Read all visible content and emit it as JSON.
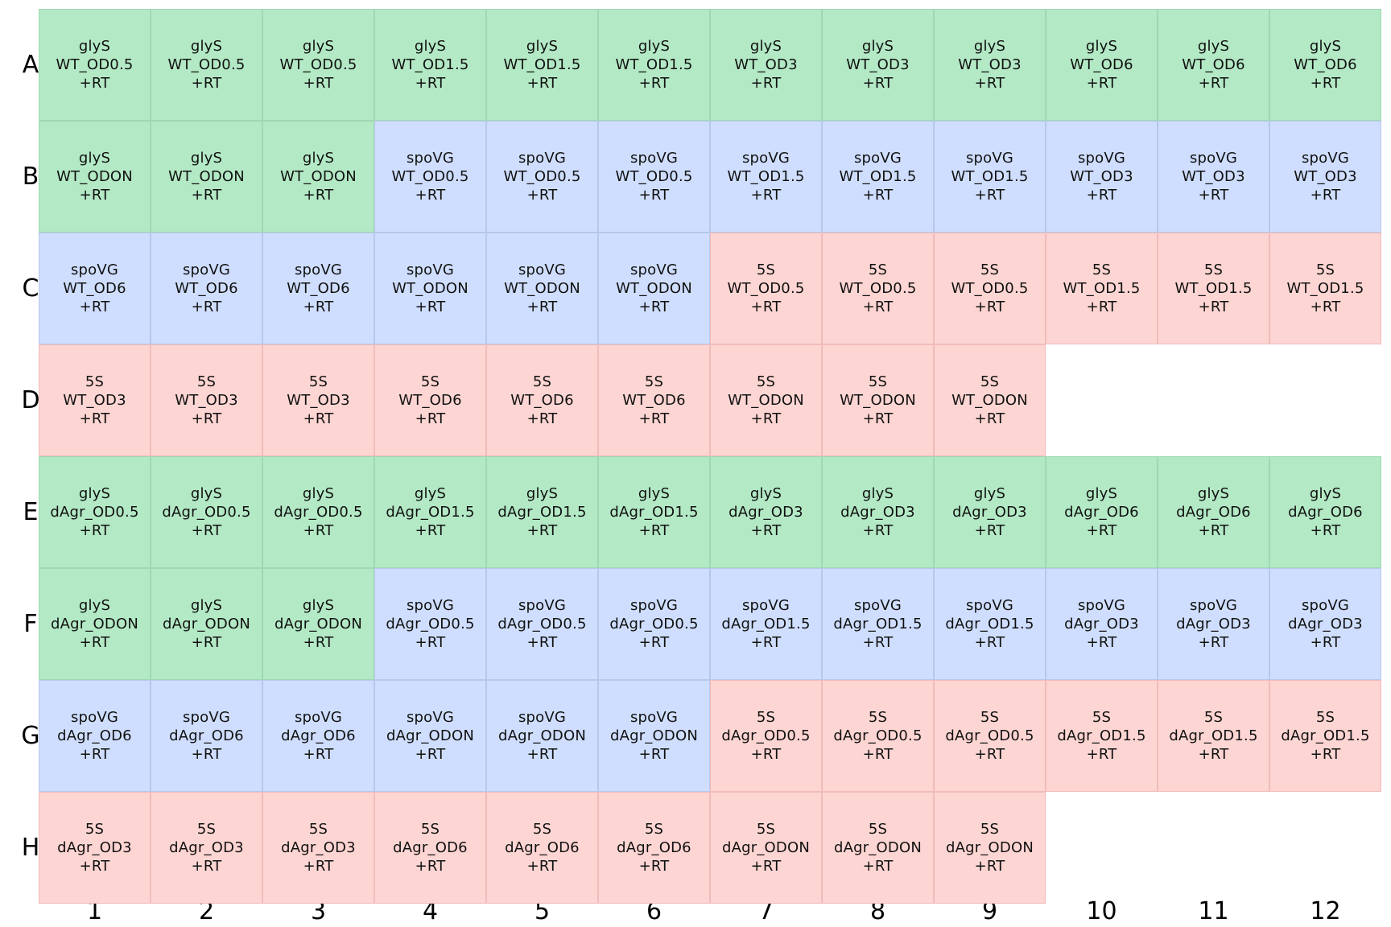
{
  "colors": {
    "glyS": "#b3e9c5",
    "spoVG": "#cfdeff",
    "5S": "#fdd5d3",
    "border_glyS": "#9fd8b2",
    "border_spoVG": "#b6c8ea",
    "border_5S": "#f0bcbb"
  },
  "row_labels": [
    "A",
    "B",
    "C",
    "D",
    "E",
    "F",
    "G",
    "H"
  ],
  "col_labels": [
    "1",
    "2",
    "3",
    "4",
    "5",
    "6",
    "7",
    "8",
    "9",
    "10",
    "11",
    "12"
  ],
  "wells": [
    {
      "gene": "glyS",
      "sample": "WT_OD0.5",
      "rt": "+RT"
    },
    {
      "gene": "glyS",
      "sample": "WT_OD0.5",
      "rt": "+RT"
    },
    {
      "gene": "glyS",
      "sample": "WT_OD0.5",
      "rt": "+RT"
    },
    {
      "gene": "glyS",
      "sample": "WT_OD1.5",
      "rt": "+RT"
    },
    {
      "gene": "glyS",
      "sample": "WT_OD1.5",
      "rt": "+RT"
    },
    {
      "gene": "glyS",
      "sample": "WT_OD1.5",
      "rt": "+RT"
    },
    {
      "gene": "glyS",
      "sample": "WT_OD3",
      "rt": "+RT"
    },
    {
      "gene": "glyS",
      "sample": "WT_OD3",
      "rt": "+RT"
    },
    {
      "gene": "glyS",
      "sample": "WT_OD3",
      "rt": "+RT"
    },
    {
      "gene": "glyS",
      "sample": "WT_OD6",
      "rt": "+RT"
    },
    {
      "gene": "glyS",
      "sample": "WT_OD6",
      "rt": "+RT"
    },
    {
      "gene": "glyS",
      "sample": "WT_OD6",
      "rt": "+RT"
    },
    {
      "gene": "glyS",
      "sample": "WT_ODON",
      "rt": "+RT"
    },
    {
      "gene": "glyS",
      "sample": "WT_ODON",
      "rt": "+RT"
    },
    {
      "gene": "glyS",
      "sample": "WT_ODON",
      "rt": "+RT"
    },
    {
      "gene": "spoVG",
      "sample": "WT_OD0.5",
      "rt": "+RT"
    },
    {
      "gene": "spoVG",
      "sample": "WT_OD0.5",
      "rt": "+RT"
    },
    {
      "gene": "spoVG",
      "sample": "WT_OD0.5",
      "rt": "+RT"
    },
    {
      "gene": "spoVG",
      "sample": "WT_OD1.5",
      "rt": "+RT"
    },
    {
      "gene": "spoVG",
      "sample": "WT_OD1.5",
      "rt": "+RT"
    },
    {
      "gene": "spoVG",
      "sample": "WT_OD1.5",
      "rt": "+RT"
    },
    {
      "gene": "spoVG",
      "sample": "WT_OD3",
      "rt": "+RT"
    },
    {
      "gene": "spoVG",
      "sample": "WT_OD3",
      "rt": "+RT"
    },
    {
      "gene": "spoVG",
      "sample": "WT_OD3",
      "rt": "+RT"
    },
    {
      "gene": "spoVG",
      "sample": "WT_OD6",
      "rt": "+RT"
    },
    {
      "gene": "spoVG",
      "sample": "WT_OD6",
      "rt": "+RT"
    },
    {
      "gene": "spoVG",
      "sample": "WT_OD6",
      "rt": "+RT"
    },
    {
      "gene": "spoVG",
      "sample": "WT_ODON",
      "rt": "+RT"
    },
    {
      "gene": "spoVG",
      "sample": "WT_ODON",
      "rt": "+RT"
    },
    {
      "gene": "spoVG",
      "sample": "WT_ODON",
      "rt": "+RT"
    },
    {
      "gene": "5S",
      "sample": "WT_OD0.5",
      "rt": "+RT"
    },
    {
      "gene": "5S",
      "sample": "WT_OD0.5",
      "rt": "+RT"
    },
    {
      "gene": "5S",
      "sample": "WT_OD0.5",
      "rt": "+RT"
    },
    {
      "gene": "5S",
      "sample": "WT_OD1.5",
      "rt": "+RT"
    },
    {
      "gene": "5S",
      "sample": "WT_OD1.5",
      "rt": "+RT"
    },
    {
      "gene": "5S",
      "sample": "WT_OD1.5",
      "rt": "+RT"
    },
    {
      "gene": "5S",
      "sample": "WT_OD3",
      "rt": "+RT"
    },
    {
      "gene": "5S",
      "sample": "WT_OD3",
      "rt": "+RT"
    },
    {
      "gene": "5S",
      "sample": "WT_OD3",
      "rt": "+RT"
    },
    {
      "gene": "5S",
      "sample": "WT_OD6",
      "rt": "+RT"
    },
    {
      "gene": "5S",
      "sample": "WT_OD6",
      "rt": "+RT"
    },
    {
      "gene": "5S",
      "sample": "WT_OD6",
      "rt": "+RT"
    },
    {
      "gene": "5S",
      "sample": "WT_ODON",
      "rt": "+RT"
    },
    {
      "gene": "5S",
      "sample": "WT_ODON",
      "rt": "+RT"
    },
    {
      "gene": "5S",
      "sample": "WT_ODON",
      "rt": "+RT"
    },
    null,
    null,
    null,
    {
      "gene": "glyS",
      "sample": "dAgr_OD0.5",
      "rt": "+RT"
    },
    {
      "gene": "glyS",
      "sample": "dAgr_OD0.5",
      "rt": "+RT"
    },
    {
      "gene": "glyS",
      "sample": "dAgr_OD0.5",
      "rt": "+RT"
    },
    {
      "gene": "glyS",
      "sample": "dAgr_OD1.5",
      "rt": "+RT"
    },
    {
      "gene": "glyS",
      "sample": "dAgr_OD1.5",
      "rt": "+RT"
    },
    {
      "gene": "glyS",
      "sample": "dAgr_OD1.5",
      "rt": "+RT"
    },
    {
      "gene": "glyS",
      "sample": "dAgr_OD3",
      "rt": "+RT"
    },
    {
      "gene": "glyS",
      "sample": "dAgr_OD3",
      "rt": "+RT"
    },
    {
      "gene": "glyS",
      "sample": "dAgr_OD3",
      "rt": "+RT"
    },
    {
      "gene": "glyS",
      "sample": "dAgr_OD6",
      "rt": "+RT"
    },
    {
      "gene": "glyS",
      "sample": "dAgr_OD6",
      "rt": "+RT"
    },
    {
      "gene": "glyS",
      "sample": "dAgr_OD6",
      "rt": "+RT"
    },
    {
      "gene": "glyS",
      "sample": "dAgr_ODON",
      "rt": "+RT"
    },
    {
      "gene": "glyS",
      "sample": "dAgr_ODON",
      "rt": "+RT"
    },
    {
      "gene": "glyS",
      "sample": "dAgr_ODON",
      "rt": "+RT"
    },
    {
      "gene": "spoVG",
      "sample": "dAgr_OD0.5",
      "rt": "+RT"
    },
    {
      "gene": "spoVG",
      "sample": "dAgr_OD0.5",
      "rt": "+RT"
    },
    {
      "gene": "spoVG",
      "sample": "dAgr_OD0.5",
      "rt": "+RT"
    },
    {
      "gene": "spoVG",
      "sample": "dAgr_OD1.5",
      "rt": "+RT"
    },
    {
      "gene": "spoVG",
      "sample": "dAgr_OD1.5",
      "rt": "+RT"
    },
    {
      "gene": "spoVG",
      "sample": "dAgr_OD1.5",
      "rt": "+RT"
    },
    {
      "gene": "spoVG",
      "sample": "dAgr_OD3",
      "rt": "+RT"
    },
    {
      "gene": "spoVG",
      "sample": "dAgr_OD3",
      "rt": "+RT"
    },
    {
      "gene": "spoVG",
      "sample": "dAgr_OD3",
      "rt": "+RT"
    },
    {
      "gene": "spoVG",
      "sample": "dAgr_OD6",
      "rt": "+RT"
    },
    {
      "gene": "spoVG",
      "sample": "dAgr_OD6",
      "rt": "+RT"
    },
    {
      "gene": "spoVG",
      "sample": "dAgr_OD6",
      "rt": "+RT"
    },
    {
      "gene": "spoVG",
      "sample": "dAgr_ODON",
      "rt": "+RT"
    },
    {
      "gene": "spoVG",
      "sample": "dAgr_ODON",
      "rt": "+RT"
    },
    {
      "gene": "spoVG",
      "sample": "dAgr_ODON",
      "rt": "+RT"
    },
    {
      "gene": "5S",
      "sample": "dAgr_OD0.5",
      "rt": "+RT"
    },
    {
      "gene": "5S",
      "sample": "dAgr_OD0.5",
      "rt": "+RT"
    },
    {
      "gene": "5S",
      "sample": "dAgr_OD0.5",
      "rt": "+RT"
    },
    {
      "gene": "5S",
      "sample": "dAgr_OD1.5",
      "rt": "+RT"
    },
    {
      "gene": "5S",
      "sample": "dAgr_OD1.5",
      "rt": "+RT"
    },
    {
      "gene": "5S",
      "sample": "dAgr_OD1.5",
      "rt": "+RT"
    },
    {
      "gene": "5S",
      "sample": "dAgr_OD3",
      "rt": "+RT"
    },
    {
      "gene": "5S",
      "sample": "dAgr_OD3",
      "rt": "+RT"
    },
    {
      "gene": "5S",
      "sample": "dAgr_OD3",
      "rt": "+RT"
    },
    {
      "gene": "5S",
      "sample": "dAgr_OD6",
      "rt": "+RT"
    },
    {
      "gene": "5S",
      "sample": "dAgr_OD6",
      "rt": "+RT"
    },
    {
      "gene": "5S",
      "sample": "dAgr_OD6",
      "rt": "+RT"
    },
    {
      "gene": "5S",
      "sample": "dAgr_ODON",
      "rt": "+RT"
    },
    {
      "gene": "5S",
      "sample": "dAgr_ODON",
      "rt": "+RT"
    },
    {
      "gene": "5S",
      "sample": "dAgr_ODON",
      "rt": "+RT"
    },
    null,
    null,
    null
  ]
}
